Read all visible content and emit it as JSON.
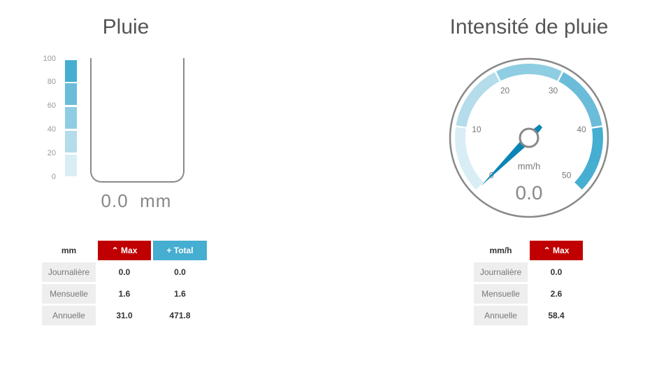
{
  "rain": {
    "title": "Pluie",
    "scale_labels": [
      "100",
      "80",
      "60",
      "40",
      "20",
      "0"
    ],
    "scale_colors": [
      "#45aed1",
      "#6bbcd9",
      "#8ecde2",
      "#b4dcea",
      "#d9eef4"
    ],
    "value": "0.0",
    "unit": "mm",
    "fill_fraction": 0
  },
  "rain_table": {
    "unit": "mm",
    "max_label": "Max",
    "total_label": "Total",
    "max_icon": "chevron-up-icon",
    "total_icon": "plus-icon",
    "rows": [
      {
        "label": "Journalière",
        "max": "0.0",
        "total": "0.0"
      },
      {
        "label": "Mensuelle",
        "max": "1.6",
        "total": "1.6"
      },
      {
        "label": "Annuelle",
        "max": "31.0",
        "total": "471.8"
      }
    ]
  },
  "rate": {
    "title": "Intensité de pluie",
    "unit": "mm/h",
    "value": "0.0",
    "min": 0,
    "max": 50,
    "ticks": [
      "0",
      "10",
      "20",
      "30",
      "40",
      "50"
    ],
    "band_colors": [
      "#d9eef4",
      "#b4dcea",
      "#8ecde2",
      "#6bbcd9",
      "#45aed1"
    ],
    "needle_color": "#0a85b5"
  },
  "rate_table": {
    "unit": "mm/h",
    "max_label": "Max",
    "max_icon": "chevron-up-icon",
    "rows": [
      {
        "label": "Journalière",
        "max": "0.0"
      },
      {
        "label": "Mensuelle",
        "max": "2.6"
      },
      {
        "label": "Annuelle",
        "max": "58.4"
      }
    ]
  },
  "colors": {
    "max": "#c00000",
    "total": "#45aed1"
  }
}
